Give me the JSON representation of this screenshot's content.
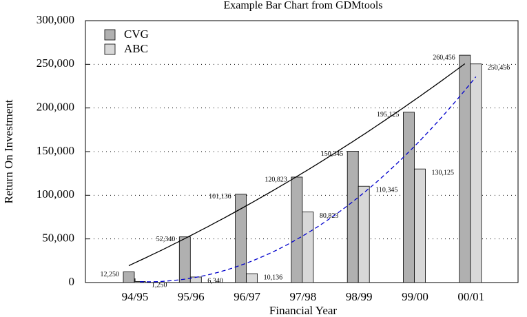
{
  "chart_data": {
    "type": "bar",
    "title": "Example Bar Chart from GDMtools",
    "x_label": "Financial Year",
    "y_label": "Return On Investment",
    "categories": [
      "94/95",
      "95/96",
      "96/97",
      "97/98",
      "98/99",
      "99/00",
      "00/01"
    ],
    "series": [
      {
        "name": "CVG",
        "color": "#b0b0b0",
        "line_color": "#000000",
        "values": [
          12250,
          52340,
          101136,
          120823,
          150345,
          195125,
          260456
        ],
        "value_labels": [
          "12,250",
          "52,340",
          "101,136",
          "120,823",
          "150,345",
          "195,125",
          "260,456"
        ]
      },
      {
        "name": "ABC",
        "color": "#d8d8d8",
        "line_color": "#0000cc",
        "values": [
          1250,
          6340,
          10136,
          80823,
          110345,
          130125,
          250456
        ],
        "value_labels": [
          "1,250",
          "6,340",
          "10,136",
          "80,823",
          "110,345",
          "130,125",
          "250,456"
        ]
      }
    ],
    "ylim": [
      0,
      300000
    ],
    "yticks": [
      0,
      {
        "value": 50000,
        "label": "50,000"
      },
      {
        "value": 100000,
        "label": "100,000"
      },
      {
        "value": 150000,
        "label": "150,000"
      },
      {
        "value": 200000,
        "label": "200,000"
      },
      {
        "value": 250000,
        "label": "250,000"
      },
      {
        "value": 300000,
        "label": "300,000"
      }
    ],
    "grid": true,
    "legend": "upper left"
  }
}
